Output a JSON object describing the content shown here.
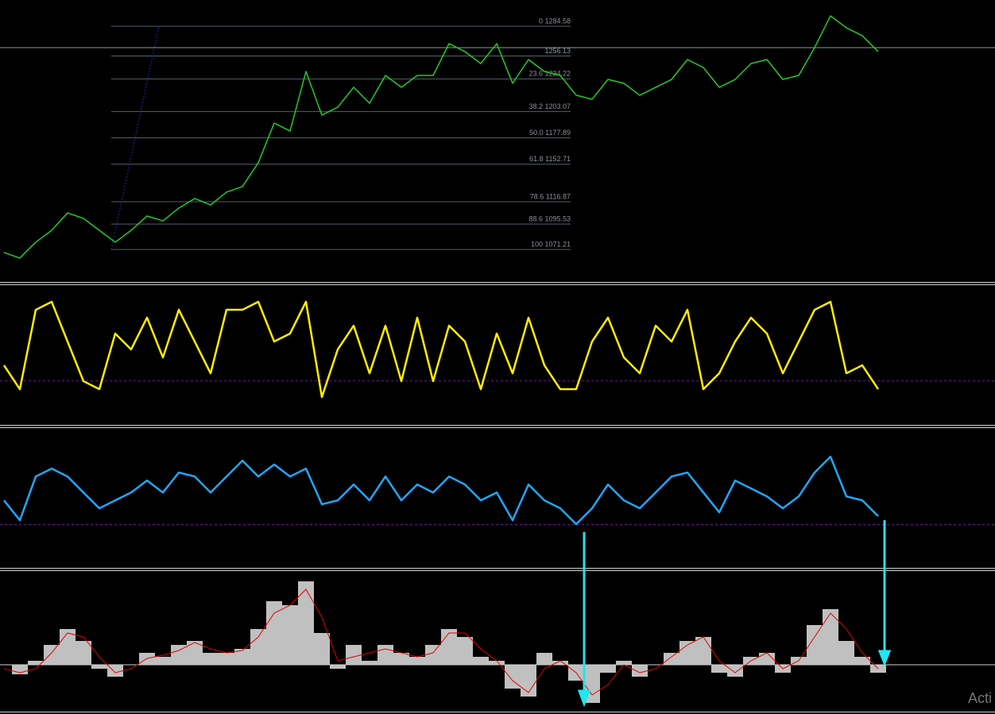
{
  "chart_data": [
    {
      "type": "line",
      "color": "#22cc22",
      "ylim": [
        1040.2,
        1309.6
      ],
      "values": [
        1068.3,
        1063.0,
        1078.2,
        1089.5,
        1106.2,
        1100.9,
        1089.5,
        1078.2,
        1089.5,
        1103.2,
        1098.6,
        1110.8,
        1119.9,
        1113.8,
        1126.0,
        1131.3,
        1154.1,
        1192.0,
        1184.4,
        1241.3,
        1199.6,
        1207.2,
        1226.2,
        1211.0,
        1237.5,
        1226.2,
        1237.5,
        1237.5,
        1267.9,
        1260.3,
        1248.9,
        1267.9,
        1230.0,
        1252.7,
        1241.3,
        1237.5,
        1218.6,
        1214.8,
        1233.7,
        1230.0,
        1218.6,
        1226.2,
        1233.7,
        1252.7,
        1245.1,
        1226.2,
        1233.7,
        1248.9,
        1252.7,
        1233.7,
        1237.5,
        1264.1,
        1294.4,
        1283.1,
        1275.5,
        1260.3
      ],
      "price_line": 1264.1,
      "levels": [
        {
          "value": 1284.58,
          "label": "0 1284.58"
        },
        {
          "value": 1256.13,
          "label": "1256.13"
        },
        {
          "value": 1234.22,
          "label": "23.6 1234.22"
        },
        {
          "value": 1203.07,
          "label": "38.2 1203.07"
        },
        {
          "value": 1177.89,
          "label": "50.0 1177.89"
        },
        {
          "value": 1152.71,
          "label": "61.8 1152.71"
        },
        {
          "value": 1116.87,
          "label": "78.6 1116.87"
        },
        {
          "value": 1095.53,
          "label": "88.6 1095.53"
        },
        {
          "value": 1071.21,
          "label": "100 1071.21"
        }
      ]
    },
    {
      "type": "line",
      "color": "#ffee00",
      "ylim": [
        0,
        100
      ],
      "level": 30,
      "values": [
        41.7,
        23.8,
        83.3,
        89.3,
        59.5,
        29.8,
        23.8,
        65.5,
        53.6,
        77.4,
        47.6,
        83.3,
        59.5,
        35.7,
        83.3,
        83.3,
        89.3,
        59.5,
        65.5,
        89.3,
        17.9,
        53.6,
        71.4,
        35.7,
        71.4,
        29.8,
        77.4,
        29.8,
        71.4,
        59.5,
        23.8,
        65.5,
        35.7,
        77.4,
        41.7,
        23.8,
        23.8,
        59.5,
        77.4,
        47.6,
        35.7,
        71.4,
        59.5,
        83.3,
        23.8,
        35.7,
        59.5,
        77.4,
        65.5,
        35.7,
        59.5,
        83.3,
        89.3,
        35.7,
        41.7,
        23.8
      ]
    },
    {
      "type": "line",
      "color": "#1ea7ff",
      "ylim": [
        0,
        100
      ],
      "level": 30,
      "values": [
        48.5,
        33.3,
        66.7,
        72.7,
        66.7,
        54.5,
        42.4,
        48.5,
        54.5,
        63.6,
        54.5,
        69.7,
        66.7,
        54.5,
        66.7,
        78.8,
        66.7,
        75.8,
        66.7,
        72.7,
        45.5,
        48.5,
        60.6,
        48.5,
        66.7,
        48.5,
        60.6,
        54.5,
        66.7,
        60.6,
        48.5,
        54.5,
        33.3,
        60.6,
        48.5,
        42.4,
        30.3,
        42.4,
        60.6,
        48.5,
        42.4,
        54.5,
        66.7,
        69.7,
        54.5,
        39.4,
        63.6,
        57.6,
        51.5,
        42.4,
        51.5,
        69.7,
        81.8,
        51.5,
        48.5,
        36.4
      ]
    },
    {
      "type": "bar",
      "color": "#c0c0c0",
      "ylim": [
        -60,
        120
      ],
      "values": [
        0,
        -12,
        5,
        25,
        45,
        30,
        -5,
        -15,
        0,
        15,
        10,
        25,
        30,
        15,
        15,
        20,
        45,
        80,
        75,
        105,
        40,
        -5,
        25,
        5,
        25,
        15,
        10,
        25,
        45,
        35,
        10,
        5,
        -30,
        -40,
        15,
        5,
        -20,
        -48,
        -10,
        5,
        -15,
        0,
        15,
        30,
        35,
        -10,
        -15,
        10,
        15,
        -10,
        10,
        50,
        70,
        30,
        10,
        -10
      ],
      "line_color": "#dd0000",
      "line_values": [
        -5,
        -10,
        -5,
        15,
        40,
        35,
        10,
        -10,
        -5,
        8,
        12,
        18,
        28,
        20,
        15,
        18,
        35,
        65,
        75,
        95,
        60,
        5,
        10,
        15,
        20,
        15,
        10,
        15,
        40,
        40,
        20,
        5,
        -20,
        -35,
        -5,
        5,
        -10,
        -38,
        -25,
        0,
        -10,
        -5,
        10,
        25,
        35,
        5,
        -10,
        5,
        15,
        -5,
        5,
        35,
        65,
        45,
        15,
        -5
      ]
    }
  ],
  "watermark": "Acti"
}
